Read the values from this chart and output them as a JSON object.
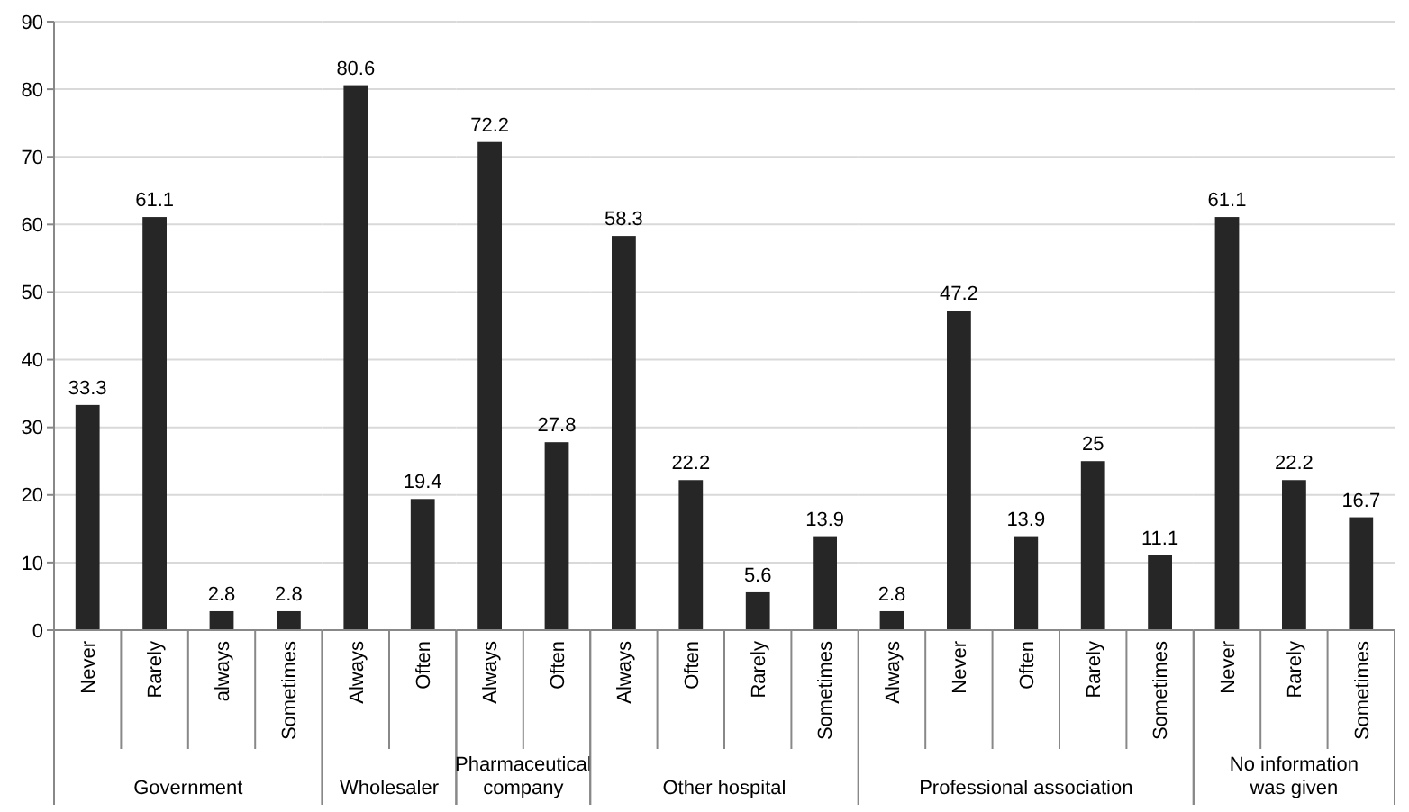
{
  "chart_data": [
    {
      "type": "bar",
      "xlabel": "Government",
      "categories": [
        "Never",
        "Rarely",
        "always",
        "Sometimes"
      ],
      "values": [
        33.3,
        61.1,
        2.8,
        2.8
      ],
      "color": "#262626",
      "ylim": [
        0,
        90
      ],
      "yticks": [
        0,
        10,
        20,
        30,
        40,
        50,
        60,
        70,
        80,
        90
      ],
      "grid": "y",
      "data_labels": true
    },
    {
      "type": "bar",
      "xlabel": "Wholesaler",
      "categories": [
        "Always",
        "Often"
      ],
      "values": [
        80.6,
        19.4
      ],
      "color": "#262626",
      "ylim": [
        0,
        90
      ],
      "yticks": [
        0,
        10,
        20,
        30,
        40,
        50,
        60,
        70,
        80,
        90
      ],
      "grid": "y",
      "data_labels": true,
      "tick_labels": "x"
    },
    {
      "type": "bar",
      "xlabel": "Pharmaceutical company",
      "categories": [
        "Always",
        "Often"
      ],
      "values": [
        72.2,
        27.8
      ],
      "color": "#262626",
      "ylim": [
        0,
        90
      ],
      "yticks": [
        0,
        10,
        20,
        30,
        40,
        50,
        60,
        70,
        80,
        90
      ],
      "grid": "y",
      "data_labels": true,
      "tick_labels": "x"
    },
    {
      "type": "bar",
      "xlabel": "Other hospital",
      "categories": [
        "Always",
        "Often",
        "Rarely",
        "Sometimes"
      ],
      "values": [
        58.3,
        22.2,
        5.6,
        13.9
      ],
      "color": "#262626",
      "ylim": [
        0,
        90
      ],
      "yticks": [
        0,
        10,
        20,
        30,
        40,
        50,
        60,
        70,
        80,
        90
      ],
      "grid": "y",
      "data_labels": true,
      "tick_labels": "x"
    },
    {
      "type": "bar",
      "xlabel": "Professional association",
      "categories": [
        "Always",
        "Never",
        "Often",
        "Rarely",
        "Sometimes"
      ],
      "values": [
        2.8,
        47.2,
        13.9,
        25,
        11.1
      ],
      "color": "#262626",
      "ylim": [
        0,
        90
      ],
      "yticks": [
        0,
        10,
        20,
        30,
        40,
        50,
        60,
        70,
        80,
        90
      ],
      "grid": "y",
      "data_labels": true,
      "tick_labels": "x"
    },
    {
      "type": "bar",
      "xlabel": "No information was given",
      "categories": [
        "Never",
        "Rarely",
        "Sometimes"
      ],
      "values": [
        61.1,
        22.2,
        16.7
      ],
      "color": "#262626",
      "ylim": [
        0,
        90
      ],
      "yticks": [
        0,
        10,
        20,
        30,
        40,
        50,
        60,
        70,
        80,
        90
      ],
      "grid": "y",
      "data_labels": true,
      "tick_labels": "x"
    }
  ]
}
